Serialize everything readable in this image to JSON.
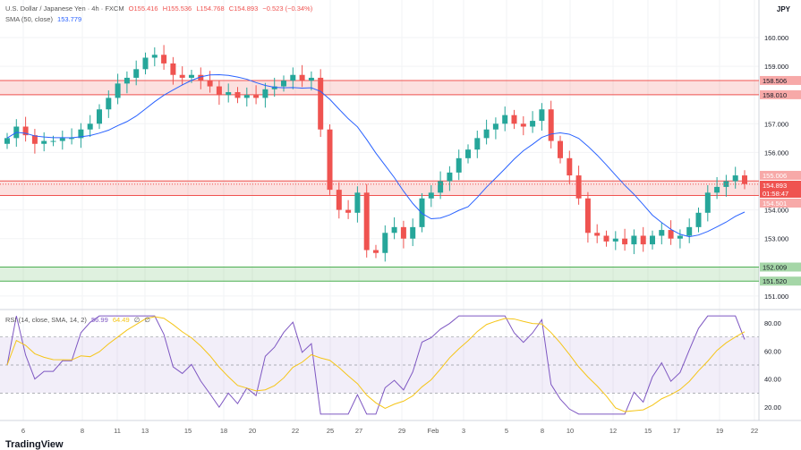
{
  "header": {
    "symbol": "U.S. Dollar / Japanese Yen · 4h · FXCM",
    "open": "O155.416",
    "high": "H155.536",
    "low": "L154.768",
    "close": "C154.893",
    "change": "−0.523 (−0.34%)",
    "sma_label": "SMA (50, close)",
    "sma_value": "153.779",
    "currency": "JPY"
  },
  "rsi_legend": {
    "label": "RSI (14, close, SMA, 14, 2)",
    "rsi": "56.99",
    "rsi_ma": "64.49",
    "extra1": "∅",
    "extra2": "∅"
  },
  "price_axis": {
    "ticks": [
      "160.000",
      "159.000",
      "157.000",
      "156.000",
      "154.000",
      "153.000",
      "151.000"
    ],
    "tick_values": [
      160,
      159,
      157,
      156,
      154,
      153,
      151
    ]
  },
  "price_labels": {
    "zone1_top": "158.506",
    "zone1_bottom": "158.010",
    "zone2_top": "155.006",
    "current_price": "154.893",
    "countdown": "01:58:47",
    "zone2_bottom": "154.501",
    "zone3_top": "152.009",
    "zone3_bottom": "151.520"
  },
  "zones": [
    {
      "top": 158.506,
      "bottom": 158.01,
      "color": "#ef5350"
    },
    {
      "top": 155.006,
      "bottom": 154.501,
      "color": "#ef5350"
    },
    {
      "top": 152.009,
      "bottom": 151.52,
      "color": "#4caf50"
    }
  ],
  "rsi_axis": {
    "ticks": [
      "80.00",
      "60.00",
      "40.00",
      "20.00"
    ],
    "tick_values": [
      80,
      60,
      40,
      20
    ]
  },
  "time_axis": {
    "labels": [
      "6",
      "8",
      "11",
      "13",
      "15",
      "18",
      "20",
      "22",
      "25",
      "27",
      "29",
      "Feb",
      "3",
      "5",
      "8",
      "10",
      "12",
      "15",
      "17",
      "19",
      "22"
    ]
  },
  "colors": {
    "up": "#26a69a",
    "down": "#ef5350",
    "sma": "#2962ff",
    "rsi": "#7e57c2",
    "rsi_ma": "#f5c518"
  },
  "chart_data": {
    "type": "candlestick",
    "closes": [
      156.5,
      156.9,
      156.6,
      156.3,
      156.4,
      156.4,
      156.5,
      156.5,
      156.8,
      157.0,
      157.5,
      157.9,
      158.4,
      158.6,
      158.9,
      159.3,
      159.4,
      159.1,
      158.7,
      158.6,
      158.7,
      158.5,
      158.3,
      158.0,
      158.1,
      157.9,
      158.0,
      157.9,
      158.2,
      158.3,
      158.5,
      158.7,
      158.5,
      158.6,
      156.8,
      154.7,
      154.0,
      153.9,
      154.6,
      152.6,
      152.5,
      153.2,
      153.4,
      153.0,
      153.4,
      154.4,
      154.6,
      155.0,
      155.3,
      155.8,
      156.1,
      156.5,
      156.8,
      157.0,
      157.3,
      157.0,
      156.9,
      157.1,
      157.5,
      156.4,
      155.8,
      155.2,
      154.4,
      153.2,
      153.1,
      152.9,
      153.0,
      152.8,
      153.1,
      152.8,
      153.1,
      153.3,
      153.0,
      153.1,
      153.4,
      153.9,
      154.6,
      154.8,
      155.0,
      155.2,
      154.9
    ],
    "ylim": [
      150.6,
      160.6
    ]
  },
  "branding": {
    "logo": "TradingView"
  }
}
